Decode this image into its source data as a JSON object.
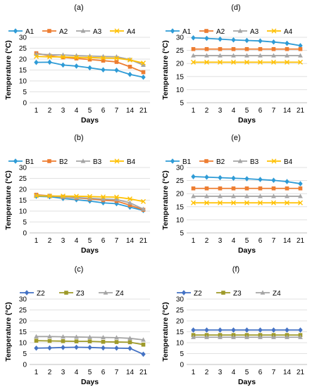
{
  "colors": {
    "blue": "#2E9BD6",
    "orange": "#ED7D31",
    "gray": "#A5A5A5",
    "yellow": "#FFC000",
    "darkblue": "#4472C4",
    "olive": "#9E9A2A",
    "grid": "#D9D9D9"
  },
  "chart_data": [
    {
      "type": "line",
      "title": "(a)",
      "xlabel": "Days",
      "ylabel": "Temperature (°C)",
      "categories": [
        "1",
        "2",
        "3",
        "4",
        "5",
        "6",
        "7",
        "14",
        "21"
      ],
      "ylim": [
        0,
        30
      ],
      "yticks": [
        0,
        5,
        10,
        15,
        20,
        25,
        30
      ],
      "grid": true,
      "legend": "top",
      "series": [
        {
          "name": "A1",
          "color": "blue",
          "marker": "diamond",
          "values": [
            18.5,
            18.6,
            17.3,
            16.8,
            16.0,
            15.1,
            14.9,
            13.0,
            11.7
          ]
        },
        {
          "name": "A2",
          "color": "orange",
          "marker": "square",
          "values": [
            22.7,
            21.5,
            20.8,
            20.3,
            19.8,
            19.3,
            18.7,
            16.5,
            14.0
          ]
        },
        {
          "name": "A3",
          "color": "gray",
          "marker": "triangle",
          "values": [
            22.3,
            22.0,
            21.9,
            21.6,
            21.4,
            21.2,
            21.1,
            19.8,
            17.3
          ]
        },
        {
          "name": "A4",
          "color": "yellow",
          "marker": "x",
          "values": [
            21.2,
            21.0,
            21.0,
            20.8,
            20.7,
            20.5,
            20.4,
            19.6,
            18.2
          ]
        }
      ]
    },
    {
      "type": "line",
      "title": "(d)",
      "xlabel": "Days",
      "ylabel": "Temperature (°C)",
      "categories": [
        "1",
        "2",
        "3",
        "4",
        "5",
        "6",
        "7",
        "14",
        "21"
      ],
      "ylim": [
        5,
        30
      ],
      "yticks": [
        5,
        10,
        15,
        20,
        25,
        30
      ],
      "grid": true,
      "legend": "top",
      "series": [
        {
          "name": "A1",
          "color": "blue",
          "marker": "diamond",
          "values": [
            29.8,
            29.6,
            29.3,
            29.0,
            28.8,
            28.6,
            28.2,
            27.7,
            26.8
          ]
        },
        {
          "name": "A2",
          "color": "orange",
          "marker": "square",
          "values": [
            25.5,
            25.5,
            25.5,
            25.5,
            25.5,
            25.5,
            25.5,
            25.5,
            25.5
          ]
        },
        {
          "name": "A3",
          "color": "gray",
          "marker": "triangle",
          "values": [
            23.0,
            23.0,
            23.0,
            23.0,
            23.0,
            23.0,
            23.0,
            23.0,
            23.0
          ]
        },
        {
          "name": "A4",
          "color": "yellow",
          "marker": "x",
          "values": [
            20.5,
            20.5,
            20.5,
            20.5,
            20.5,
            20.5,
            20.5,
            20.5,
            20.5
          ]
        }
      ]
    },
    {
      "type": "line",
      "title": "(b)",
      "xlabel": "Days",
      "ylabel": "Temperature (°C)",
      "categories": [
        "1",
        "2",
        "3",
        "4",
        "5",
        "6",
        "7",
        "14",
        "21"
      ],
      "ylim": [
        0,
        30
      ],
      "yticks": [
        0,
        5,
        10,
        15,
        20,
        25,
        30
      ],
      "grid": true,
      "legend": "top",
      "series": [
        {
          "name": "B1",
          "color": "blue",
          "marker": "diamond",
          "values": [
            16.8,
            16.6,
            15.8,
            15.2,
            14.6,
            13.8,
            13.4,
            11.8,
            10.3
          ]
        },
        {
          "name": "B2",
          "color": "orange",
          "marker": "square",
          "values": [
            17.5,
            17.0,
            16.5,
            16.0,
            15.6,
            15.0,
            14.6,
            12.7,
            10.6
          ]
        },
        {
          "name": "B3",
          "color": "gray",
          "marker": "triangle",
          "values": [
            17.2,
            17.0,
            16.6,
            16.2,
            15.9,
            15.5,
            15.3,
            13.8,
            10.9
          ]
        },
        {
          "name": "B4",
          "color": "yellow",
          "marker": "x",
          "values": [
            17.0,
            16.9,
            16.9,
            16.8,
            16.7,
            16.5,
            16.4,
            15.6,
            14.4
          ]
        }
      ]
    },
    {
      "type": "line",
      "title": "(e)",
      "xlabel": "Days",
      "ylabel": "Temperature (°C)",
      "categories": [
        "1",
        "2",
        "3",
        "4",
        "5",
        "6",
        "7",
        "14",
        "21"
      ],
      "ylim": [
        5,
        30
      ],
      "yticks": [
        5,
        10,
        15,
        20,
        25,
        30
      ],
      "grid": true,
      "legend": "top",
      "series": [
        {
          "name": "B1",
          "color": "blue",
          "marker": "diamond",
          "values": [
            26.5,
            26.3,
            26.1,
            25.9,
            25.7,
            25.4,
            25.1,
            24.6,
            23.8
          ]
        },
        {
          "name": "B2",
          "color": "orange",
          "marker": "square",
          "values": [
            22.0,
            22.0,
            22.0,
            22.0,
            22.0,
            22.0,
            22.0,
            22.0,
            22.0
          ]
        },
        {
          "name": "B3",
          "color": "gray",
          "marker": "triangle",
          "values": [
            19.0,
            19.0,
            19.0,
            19.0,
            19.0,
            19.0,
            19.0,
            19.0,
            19.0
          ]
        },
        {
          "name": "B4",
          "color": "yellow",
          "marker": "x",
          "values": [
            16.5,
            16.5,
            16.5,
            16.5,
            16.5,
            16.5,
            16.5,
            16.5,
            16.5
          ]
        }
      ]
    },
    {
      "type": "line",
      "title": "(c)",
      "xlabel": "Days",
      "ylabel": "Temperature (°C)",
      "categories": [
        "1",
        "2",
        "3",
        "4",
        "5",
        "6",
        "7",
        "14",
        "21"
      ],
      "ylim": [
        0,
        30
      ],
      "yticks": [
        0,
        5,
        10,
        15,
        20,
        25,
        30
      ],
      "grid": true,
      "legend": "top",
      "series": [
        {
          "name": "Z2",
          "color": "darkblue",
          "marker": "diamond",
          "values": [
            7.5,
            7.6,
            7.8,
            7.9,
            7.8,
            7.6,
            7.5,
            7.4,
            4.7
          ]
        },
        {
          "name": "Z3",
          "color": "olive",
          "marker": "square",
          "values": [
            10.9,
            10.8,
            10.7,
            10.6,
            10.6,
            10.4,
            10.3,
            10.2,
            9.1
          ]
        },
        {
          "name": "Z4",
          "color": "gray",
          "marker": "triangle",
          "values": [
            12.8,
            12.8,
            12.7,
            12.6,
            12.5,
            12.4,
            12.3,
            12.0,
            11.3
          ]
        }
      ]
    },
    {
      "type": "line",
      "title": "(f)",
      "xlabel": "Days",
      "ylabel": "Temperature (°C)",
      "categories": [
        "1",
        "2",
        "3",
        "4",
        "5",
        "6",
        "7",
        "14",
        "21"
      ],
      "ylim": [
        0,
        30
      ],
      "yticks": [
        0,
        5,
        10,
        15,
        20,
        25,
        30
      ],
      "grid": true,
      "legend": "top",
      "series": [
        {
          "name": "Z2",
          "color": "darkblue",
          "marker": "diamond",
          "values": [
            15.8,
            15.8,
            15.8,
            15.8,
            15.8,
            15.8,
            15.8,
            15.8,
            15.8
          ]
        },
        {
          "name": "Z3",
          "color": "olive",
          "marker": "square",
          "values": [
            13.5,
            13.5,
            13.5,
            13.5,
            13.5,
            13.5,
            13.5,
            13.5,
            13.5
          ]
        },
        {
          "name": "Z4",
          "color": "gray",
          "marker": "triangle",
          "values": [
            12.5,
            12.5,
            12.5,
            12.5,
            12.5,
            12.5,
            12.5,
            12.5,
            12.5
          ]
        }
      ]
    }
  ]
}
